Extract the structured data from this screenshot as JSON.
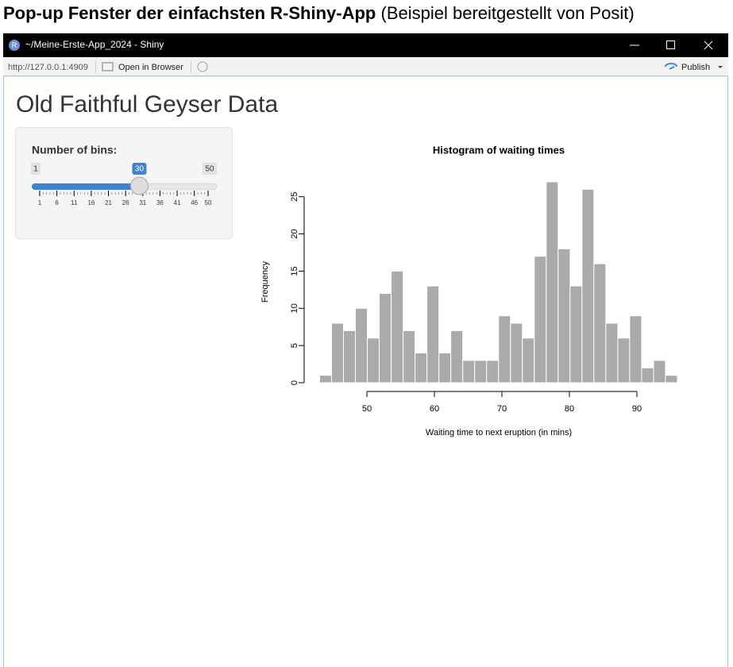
{
  "caption": {
    "bold": "Pop-up Fenster der einfachsten R-Shiny-App",
    "normal": "(Beispiel bereitgestellt von Posit)"
  },
  "window": {
    "icon_letter": "R",
    "title": "~/Meine-Erste-App_2024 - Shiny",
    "url": "http://127.0.0.1:4909",
    "open_button": "Open in Browser",
    "publish_button": "Publish"
  },
  "app": {
    "title": "Old Faithful Geyser Data",
    "slider": {
      "label": "Number of bins:",
      "min": 1,
      "max": 50,
      "value": 30,
      "ticks": [
        1,
        6,
        11,
        16,
        21,
        26,
        31,
        36,
        41,
        46,
        50
      ]
    }
  },
  "chart_data": {
    "type": "histogram",
    "title": "Histogram of waiting times",
    "x_label": "Waiting time to next eruption (in mins)",
    "y_label": "Frequency",
    "bins": [
      43,
      44.77,
      46.53,
      48.3,
      50.07,
      51.83,
      53.6,
      55.37,
      57.13,
      58.9,
      60.67,
      62.43,
      64.2,
      65.97,
      67.73,
      69.5,
      71.27,
      73.03,
      74.8,
      76.57,
      78.33,
      80.1,
      81.87,
      83.63,
      85.4,
      87.17,
      88.93,
      90.7,
      92.47,
      94.23,
      96
    ],
    "values": [
      1,
      8,
      7,
      10,
      6,
      12,
      15,
      7,
      4,
      13,
      4,
      7,
      3,
      3,
      3,
      9,
      8,
      6,
      17,
      27,
      18,
      13,
      26,
      16,
      8,
      6,
      9,
      2,
      3,
      1
    ],
    "color": "#aaaaaa",
    "edge_color": "#ffffff",
    "xlim": [
      41,
      98
    ],
    "ylim": [
      0,
      27
    ],
    "xticks": [
      50,
      60,
      70,
      80,
      90
    ],
    "yticks": [
      0,
      5,
      10,
      15,
      20,
      25
    ]
  }
}
